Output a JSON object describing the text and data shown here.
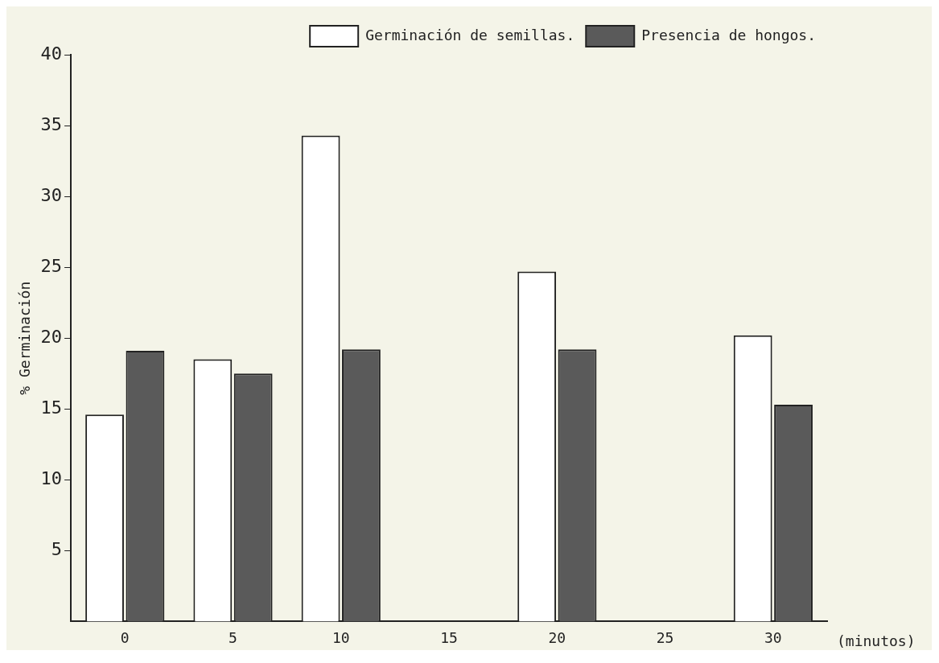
{
  "chart_data": {
    "type": "bar",
    "categories": [
      "0",
      "5",
      "10",
      "15",
      "20",
      "25",
      "30"
    ],
    "series": [
      {
        "name": "Germinación de semillas.",
        "color": "#ffffff",
        "values": [
          14.6,
          18.5,
          34.3,
          null,
          24.7,
          null,
          20.2
        ]
      },
      {
        "name": "Presencia de hongos.",
        "color": "#5a5a5a",
        "values": [
          19.1,
          17.5,
          19.2,
          null,
          19.2,
          null,
          15.3
        ]
      }
    ],
    "ylabel": "% Germinación",
    "xlabel": "(minutos)",
    "ylim": [
      0,
      40
    ],
    "yticks": [
      5,
      10,
      15,
      20,
      25,
      30,
      35,
      40
    ],
    "grid": false,
    "legend": "top right"
  }
}
